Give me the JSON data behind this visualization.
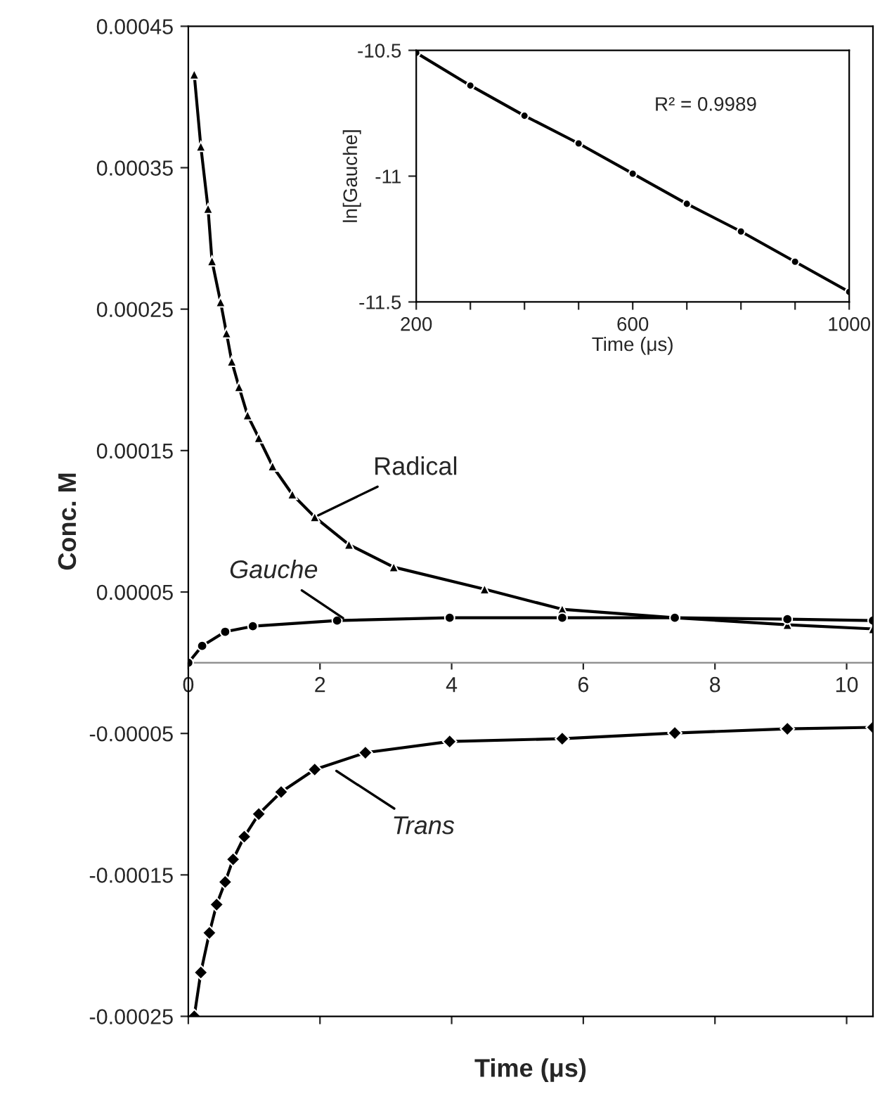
{
  "chart_data": [
    {
      "type": "line",
      "xlabel": "Time (μs)",
      "ylabel": "Conc. M",
      "xlim": [
        0,
        10.4
      ],
      "ylim": [
        -0.00025,
        0.00045
      ],
      "xticks": [
        0,
        2,
        4,
        6,
        8,
        10
      ],
      "yticks": [
        {
          "value": -0.00025,
          "label": "-0.00025"
        },
        {
          "value": -0.00015,
          "label": "-0.00015"
        },
        {
          "value": -5e-05,
          "label": "-0.00005"
        },
        {
          "value": 5e-05,
          "label": "0.00005"
        },
        {
          "value": 0.00015,
          "label": "0.00015"
        },
        {
          "value": 0.00025,
          "label": "0.00025"
        },
        {
          "value": 0.00035,
          "label": "0.00035"
        },
        {
          "value": 0.00045,
          "label": "0.00045"
        }
      ],
      "grid": false,
      "legend": false,
      "series": [
        {
          "color": "#000000",
          "marker": "triangle",
          "x": [
            0.09,
            0.19,
            0.3,
            0.36,
            0.49,
            0.58,
            0.66,
            0.77,
            0.9,
            1.07,
            1.28,
            1.58,
            1.92,
            2.44,
            3.12,
            4.5,
            5.68,
            7.39,
            9.1,
            10.4
          ],
          "values": [
            0.000416,
            0.000365,
            0.000321,
            0.000284,
            0.000255,
            0.000233,
            0.000213,
            0.000195,
            0.000175,
            0.000159,
            0.000139,
            0.000119,
            0.000103,
            8.35e-05,
            6.76e-05,
            5.2e-05,
            3.78e-05,
            3.18e-05,
            2.68e-05,
            2.39e-05
          ]
        },
        {
          "color": "#000000",
          "marker": "circle",
          "x": [
            0,
            0.21,
            0.56,
            0.98,
            2.26,
            3.97,
            5.68,
            7.39,
            9.1,
            10.4
          ],
          "values": [
            0,
            1.19e-05,
            2.19e-05,
            2.58e-05,
            2.98e-05,
            3.18e-05,
            3.18e-05,
            3.18e-05,
            3.08e-05,
            2.98e-05
          ]
        },
        {
          "color": "#000000",
          "marker": "diamond",
          "x": [
            0.09,
            0.19,
            0.32,
            0.43,
            0.56,
            0.68,
            0.85,
            1.07,
            1.41,
            1.92,
            2.69,
            3.97,
            5.68,
            7.39,
            9.1,
            10.4
          ],
          "values": [
            -0.00025,
            -0.000219,
            -0.000191,
            -0.000171,
            -0.000155,
            -0.000139,
            -0.000123,
            -0.000107,
            -9.14e-05,
            -7.55e-05,
            -6.36e-05,
            -5.57e-05,
            -5.37e-05,
            -4.97e-05,
            -4.67e-05,
            -4.57e-05
          ]
        }
      ],
      "annotations": [
        {
          "text": "Radical",
          "x": 1.92,
          "y": 0.000103
        },
        {
          "text": "Gauche",
          "x": 2.4,
          "y": 3e-05
        },
        {
          "text": "Trans",
          "x": 2.2,
          "y": -7.5e-05
        }
      ]
    },
    {
      "type": "line",
      "xlabel": "Time (μs)",
      "ylabel": "ln[Gauche]",
      "xlim": [
        200,
        1000
      ],
      "ylim": [
        -11.5,
        -10.5
      ],
      "xticks": [
        200,
        {
          "value": 300,
          "label": null
        },
        {
          "value": 400,
          "label": null
        },
        {
          "value": 500,
          "label": null
        },
        600,
        {
          "value": 700,
          "label": null
        },
        {
          "value": 800,
          "label": null
        },
        {
          "value": 900,
          "label": null
        },
        1000
      ],
      "yticks": [
        -11.5,
        -11,
        -10.5
      ],
      "grid": false,
      "legend": false,
      "series": [
        {
          "color": "#000000",
          "marker": "circle",
          "x": [
            200,
            300,
            400,
            500,
            600,
            700,
            800,
            900,
            1000
          ],
          "values": [
            -10.51,
            -10.64,
            -10.76,
            -10.87,
            -10.99,
            -11.11,
            -11.22,
            -11.34,
            -11.46
          ]
        }
      ],
      "annotations": [
        "R² = 0.9989"
      ]
    }
  ]
}
